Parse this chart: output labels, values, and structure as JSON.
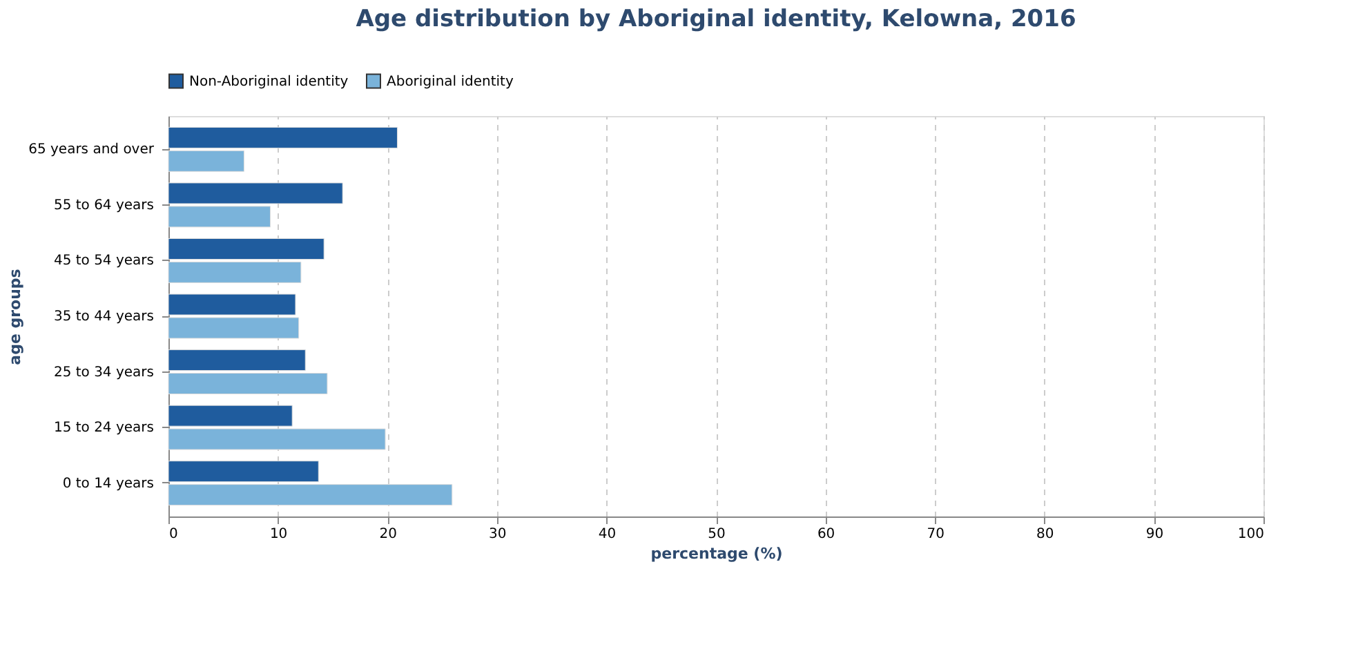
{
  "chart_data": {
    "type": "bar",
    "orientation": "horizontal",
    "title": "Age distribution by Aboriginal identity, Kelowna, 2016",
    "categories": [
      "65 years and over",
      "55 to 64 years",
      "45 to 54 years",
      "35 to 44 years",
      "25 to 34 years",
      "15 to 24 years",
      "0 to 14 years"
    ],
    "series": [
      {
        "name": "Non-Aboriginal identity",
        "color": "#1f5c9e",
        "values": [
          20.9,
          15.9,
          14.2,
          11.6,
          12.5,
          11.3,
          13.7
        ]
      },
      {
        "name": "Aboriginal identity",
        "color": "#7ab3da",
        "values": [
          6.9,
          9.3,
          12.1,
          11.9,
          14.5,
          19.8,
          25.9
        ]
      }
    ],
    "xlabel": "percentage (%)",
    "ylabel": "age groups",
    "xlim": [
      0,
      100
    ],
    "xticks": [
      0,
      10,
      20,
      30,
      40,
      50,
      60,
      70,
      80,
      90,
      100
    ],
    "grid": "x",
    "legend": "top"
  }
}
